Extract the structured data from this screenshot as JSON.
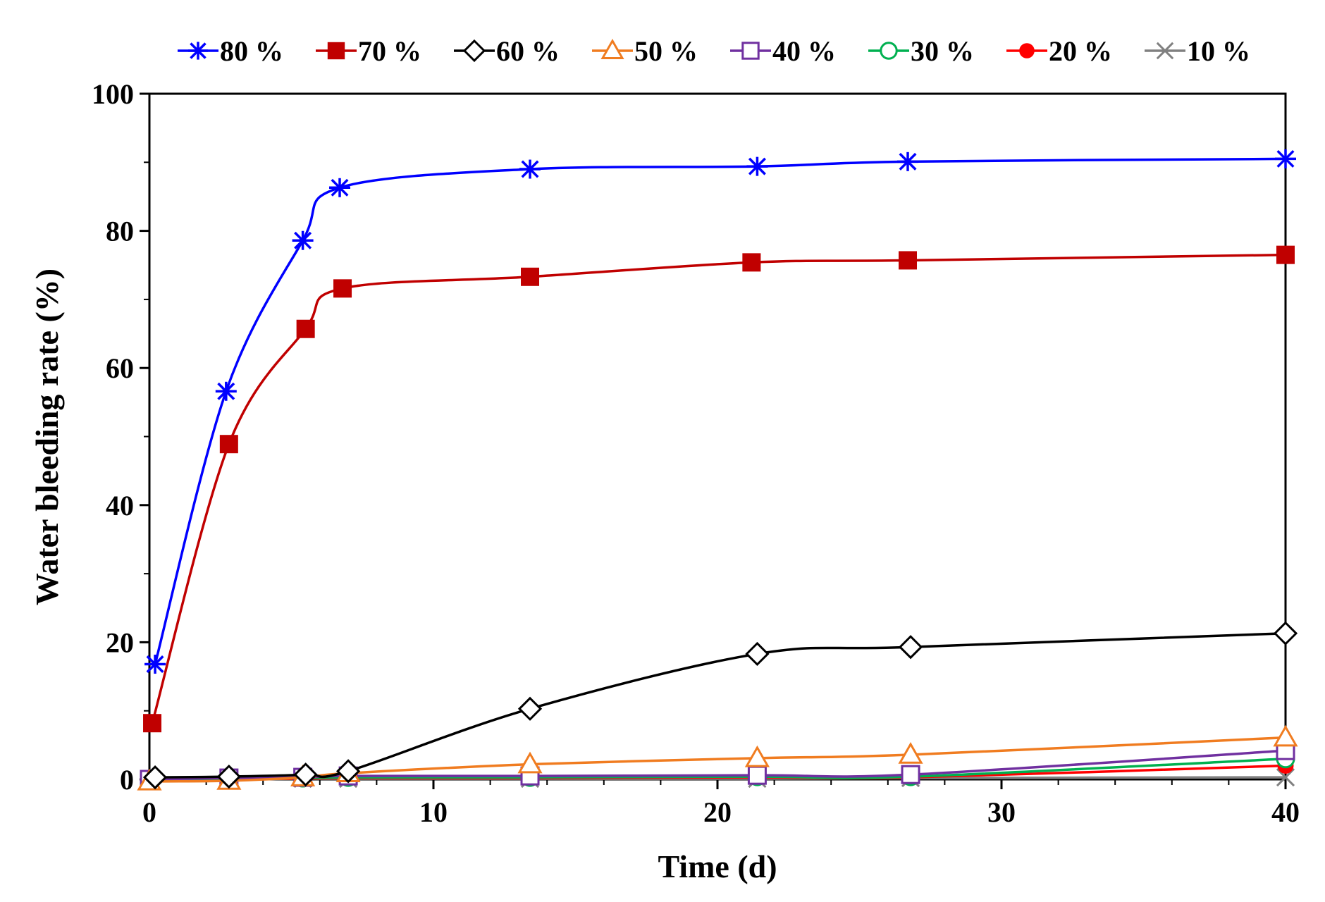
{
  "chart_data": {
    "type": "line",
    "title": "",
    "xlabel": "Time (d)",
    "ylabel": "Water bleeding rate (%)",
    "xlim": [
      0,
      40
    ],
    "ylim": [
      0,
      100
    ],
    "xticks": [
      0,
      10,
      20,
      30,
      40
    ],
    "yticks": [
      0,
      20,
      40,
      60,
      80,
      100
    ],
    "x_tick_labels": [
      "0",
      "10",
      "20",
      "30",
      "40"
    ],
    "y_tick_labels": [
      "0",
      "20",
      "40",
      "60",
      "80",
      "100"
    ],
    "grid": false,
    "legend_position": "top",
    "series": [
      {
        "name": "80 %",
        "marker": "asterisk",
        "color": "#0000FF",
        "x": [
          0.2,
          2.7,
          5.4,
          6.7,
          13.4,
          21.4,
          26.7,
          40
        ],
        "y": [
          16.8,
          56.6,
          78.6,
          86.3,
          89.0,
          89.4,
          90.1,
          90.5
        ]
      },
      {
        "name": "70 %",
        "marker": "square-filled",
        "color": "#C00000",
        "x": [
          0.1,
          2.8,
          5.5,
          6.8,
          13.4,
          21.2,
          26.7,
          40
        ],
        "y": [
          8.2,
          48.9,
          65.7,
          71.6,
          73.3,
          75.4,
          75.7,
          76.5
        ]
      },
      {
        "name": "60 %",
        "marker": "diamond-open",
        "color": "#000000",
        "x": [
          0.2,
          2.8,
          5.5,
          7.0,
          13.4,
          21.4,
          26.8,
          40
        ],
        "y": [
          0.3,
          0.4,
          0.7,
          1.2,
          10.3,
          18.3,
          19.3,
          21.3
        ]
      },
      {
        "name": "50 %",
        "marker": "triangle-open",
        "color": "#F07C20",
        "x": [
          0,
          2.8,
          5.4,
          7.0,
          13.4,
          21.4,
          26.8,
          40
        ],
        "y": [
          -0.3,
          -0.2,
          0.3,
          0.9,
          2.2,
          3.1,
          3.6,
          6.1
        ]
      },
      {
        "name": "40 %",
        "marker": "square-open",
        "color": "#7030A0",
        "x": [
          0,
          2.8,
          5.4,
          7.0,
          13.4,
          21.4,
          26.8,
          40
        ],
        "y": [
          0,
          0.2,
          0.3,
          0.5,
          0.5,
          0.6,
          0.7,
          4.2
        ]
      },
      {
        "name": "30 %",
        "marker": "circle-open",
        "color": "#00B050",
        "x": [
          0,
          2.8,
          5.4,
          7.0,
          13.4,
          21.4,
          26.8,
          40
        ],
        "y": [
          0,
          0.1,
          0.2,
          0.3,
          0.3,
          0.4,
          0.4,
          3.0
        ]
      },
      {
        "name": "20 %",
        "marker": "circle-filled",
        "color": "#FF0000",
        "x": [
          0,
          2.8,
          5.4,
          7.0,
          13.4,
          21.4,
          26.8,
          40
        ],
        "y": [
          0,
          0.1,
          0.1,
          0.2,
          0.2,
          0.3,
          0.3,
          2.0
        ]
      },
      {
        "name": "10 %",
        "marker": "x",
        "color": "#808080",
        "x": [
          0,
          2.8,
          5.4,
          7.0,
          13.4,
          21.4,
          26.8,
          40
        ],
        "y": [
          0,
          0,
          0.1,
          0.1,
          0.1,
          0.1,
          0.2,
          0.3
        ]
      }
    ]
  }
}
